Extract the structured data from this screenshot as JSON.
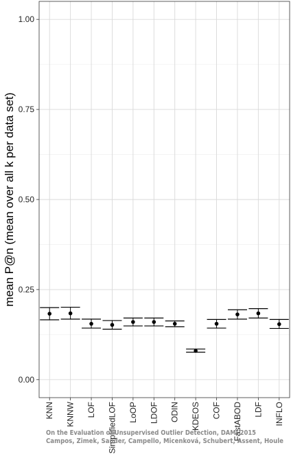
{
  "chart_data": {
    "type": "scatter",
    "ylabel": "mean P@n (mean over all k per data set)",
    "xlabel": "",
    "ylim": [
      0,
      1.0
    ],
    "yticks": [
      0.0,
      0.25,
      0.5,
      0.75,
      1.0
    ],
    "ytick_labels": [
      "0.00",
      "0.25",
      "0.50",
      "0.75",
      "1.00"
    ],
    "grid": true,
    "categories": [
      "KNN",
      "KNNW",
      "LOF",
      "SimplifiedLOF",
      "LoOP",
      "LDOF",
      "ODIN",
      "KDEOS",
      "COF",
      "FastABOD",
      "LDF",
      "INFLO"
    ],
    "series": [
      {
        "mean": [
          0.183,
          0.184,
          0.155,
          0.152,
          0.16,
          0.16,
          0.155,
          0.08,
          0.155,
          0.181,
          0.184,
          0.154
        ],
        "lower": [
          0.166,
          0.168,
          0.143,
          0.14,
          0.149,
          0.149,
          0.147,
          0.076,
          0.143,
          0.168,
          0.171,
          0.142
        ],
        "upper": [
          0.2,
          0.201,
          0.168,
          0.164,
          0.171,
          0.171,
          0.163,
          0.085,
          0.167,
          0.194,
          0.197,
          0.167
        ]
      }
    ]
  },
  "watermark": {
    "line1": "On the Evaluation of Unsupervised Outlier Detection, DAMI 2015",
    "line2": "Campos, Zimek, Sander, Campello, Micenková, Schubert, Assent, Houle"
  }
}
